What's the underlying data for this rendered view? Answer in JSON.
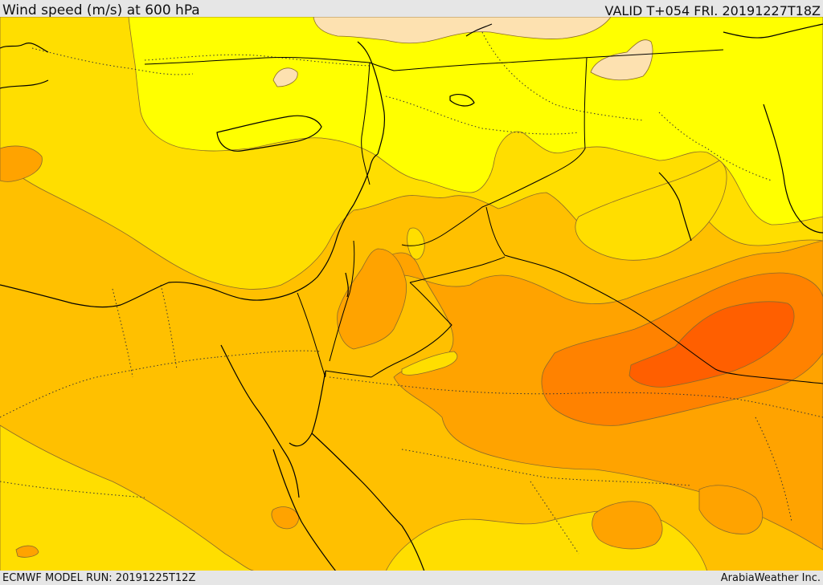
{
  "header": {
    "title": "Wind speed (m/s) at 600 hPa",
    "valid": "VALID T+054 FRI. 20191227T18Z"
  },
  "footer": {
    "model_run": "ECMWF MODEL RUN: 20191225T12Z",
    "credit": "ArabiaWeather Inc."
  },
  "map": {
    "band_colors": {
      "lightest": "#fde1b0",
      "yellow": "#ffff00",
      "gold": "#ffde00",
      "amber": "#ffc000",
      "orange": "#ffa300",
      "deep_orange": "#ff8200",
      "red_orange": "#ff5f00"
    },
    "coastline_color": "#000000",
    "border_style": "dotted"
  }
}
